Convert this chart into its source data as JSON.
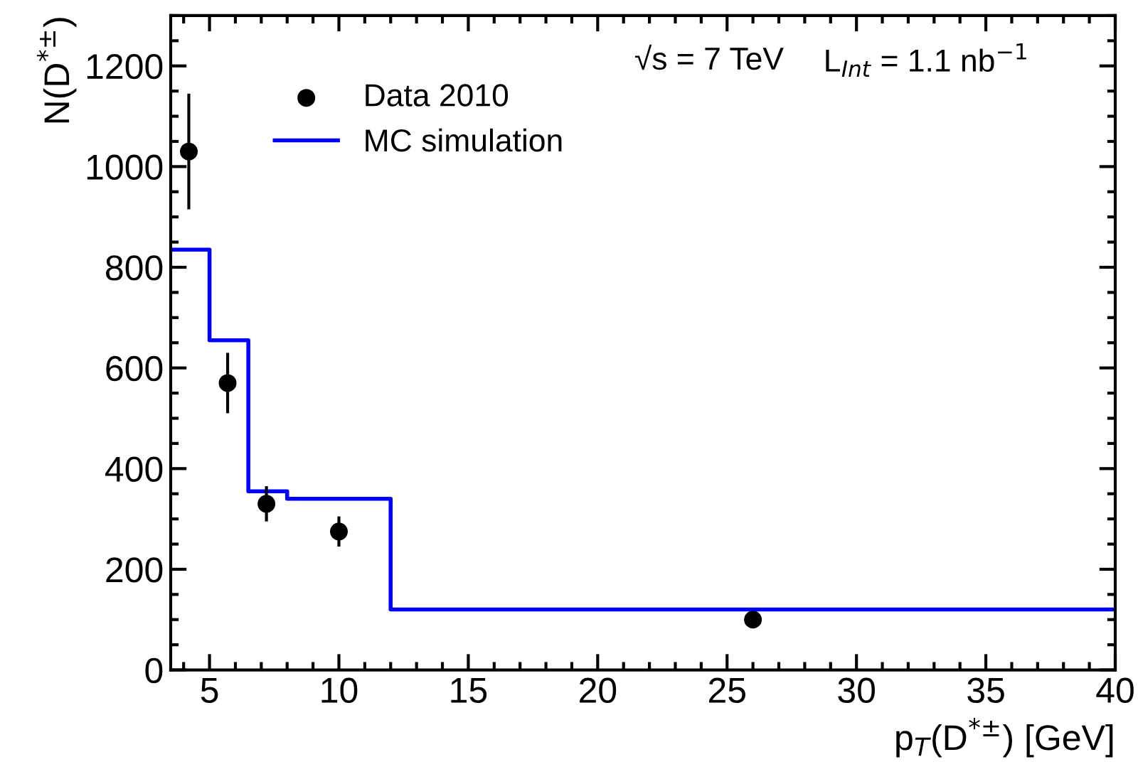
{
  "chart_data": {
    "type": "scatter",
    "xlabel": "p$_{T}$(D$^{*±}$) [GeV]",
    "ylabel": "N(D$^{*±}$)",
    "annotations": [
      "√s = 7 TeV",
      "L$_{Int}$ = 1.1 nb$^{−1}$"
    ],
    "xlim": [
      3.5,
      40
    ],
    "xticks": [
      5,
      10,
      15,
      20,
      25,
      30,
      35,
      40
    ],
    "ylim": [
      0,
      1300
    ],
    "yticks": [
      0,
      200,
      400,
      600,
      800,
      1000,
      1200
    ],
    "grid": false,
    "legend": "top left",
    "series": [
      {
        "name": "Data 2010",
        "color": "#000000",
        "marker": "circle",
        "x": [
          4.2,
          5.7,
          7.2,
          10,
          26
        ],
        "values": [
          1030,
          570,
          330,
          275,
          100
        ],
        "errors": [
          115,
          60,
          35,
          30,
          10
        ]
      },
      {
        "name": "MC simulation",
        "type": "step",
        "color": "#0000ff",
        "x": [
          3.5,
          5,
          6.5,
          8,
          12,
          40
        ],
        "values": [
          835,
          655,
          355,
          340,
          120,
          120
        ]
      }
    ]
  }
}
